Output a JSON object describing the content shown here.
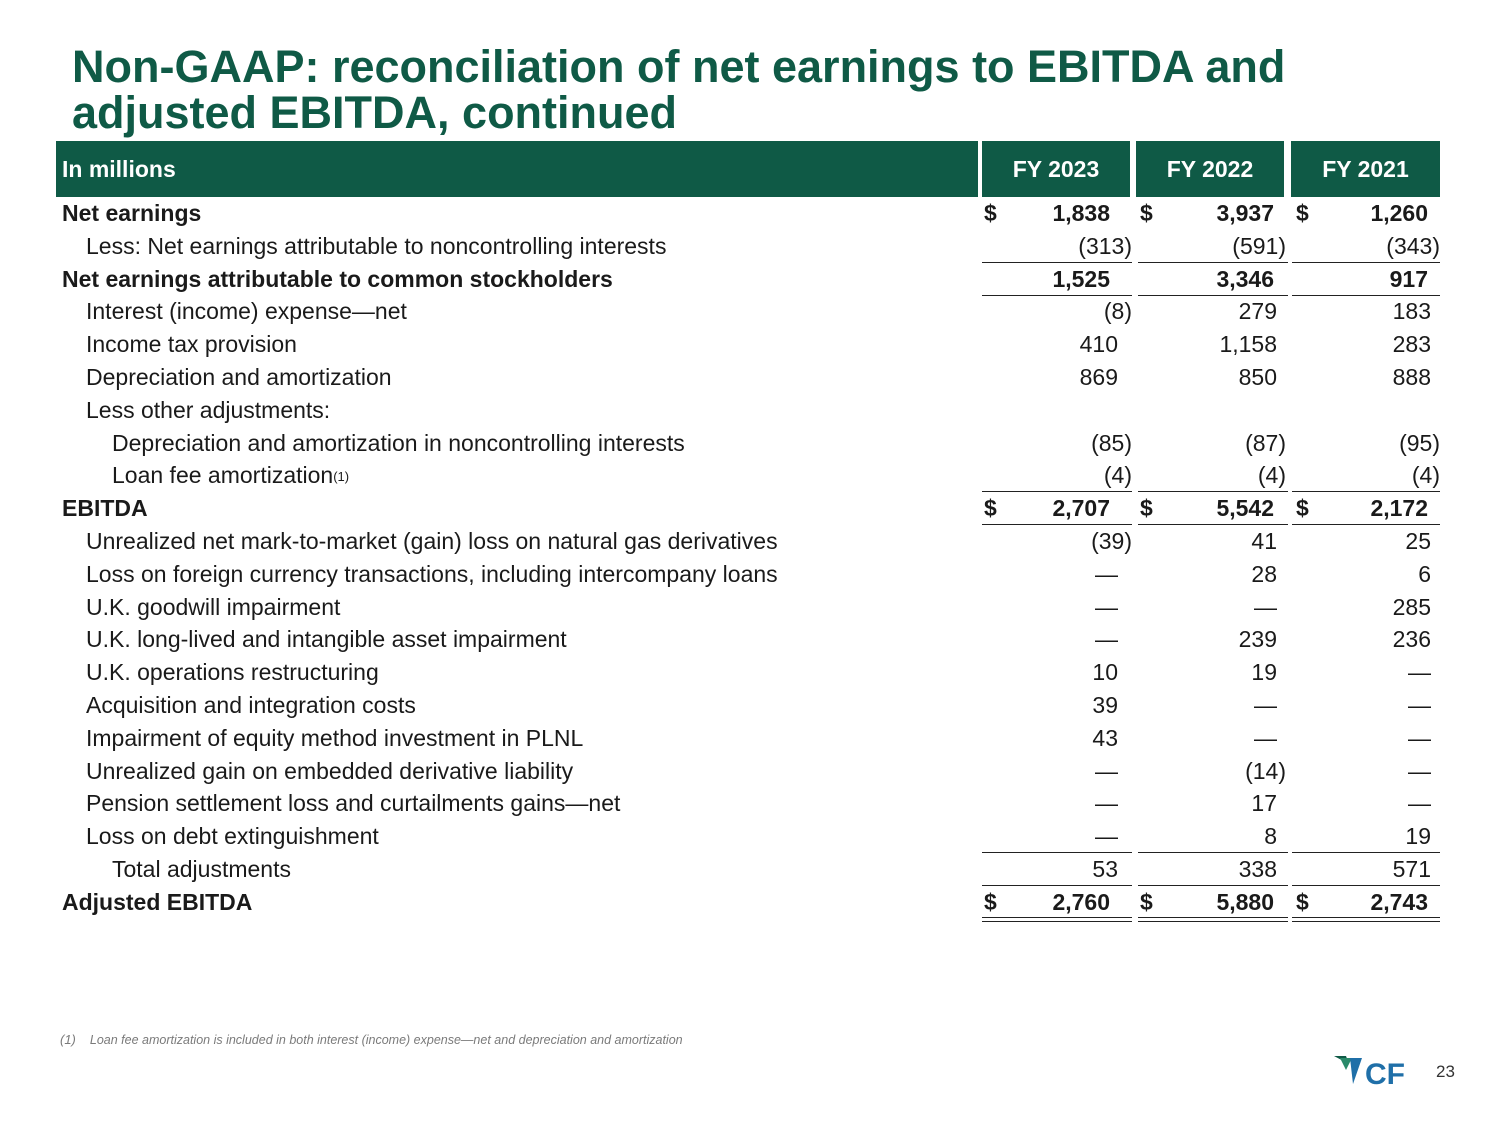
{
  "title": "Non-GAAP: reconciliation of net earnings to EBITDA and adjusted EBITDA, continued",
  "header": {
    "label": "In millions",
    "years": [
      "FY 2023",
      "FY 2022",
      "FY 2021"
    ]
  },
  "rows": [
    {
      "label": "Net earnings",
      "values": [
        "1,838",
        "3,937",
        "1,260"
      ]
    },
    {
      "label": "Less: Net earnings attributable to noncontrolling interests",
      "values": [
        "(313)",
        "(591)",
        "(343)"
      ]
    },
    {
      "label": "Net earnings attributable to common stockholders",
      "values": [
        "1,525",
        "3,346",
        "917"
      ]
    },
    {
      "label": "Interest (income) expense—net",
      "values": [
        "(8)",
        "279",
        "183"
      ]
    },
    {
      "label": "Income tax provision",
      "values": [
        "410",
        "1,158",
        "283"
      ]
    },
    {
      "label": "Depreciation and amortization",
      "values": [
        "869",
        "850",
        "888"
      ]
    },
    {
      "label": "Less other adjustments:",
      "values": [
        "",
        "",
        ""
      ]
    },
    {
      "label": "Depreciation and amortization in noncontrolling interests",
      "values": [
        "(85)",
        "(87)",
        "(95)"
      ]
    },
    {
      "label": "Loan fee amortization",
      "sup": "(1)",
      "values": [
        "(4)",
        "(4)",
        "(4)"
      ]
    },
    {
      "label": "EBITDA",
      "values": [
        "2,707",
        "5,542",
        "2,172"
      ]
    },
    {
      "label": "Unrealized net mark-to-market (gain) loss on natural gas derivatives",
      "values": [
        "(39)",
        "41",
        "25"
      ]
    },
    {
      "label": "Loss on foreign currency transactions, including intercompany loans",
      "values": [
        "—",
        "28",
        "6"
      ]
    },
    {
      "label": "U.K. goodwill impairment",
      "values": [
        "—",
        "—",
        "285"
      ]
    },
    {
      "label": "U.K. long-lived and intangible asset impairment",
      "values": [
        "—",
        "239",
        "236"
      ]
    },
    {
      "label": "U.K. operations restructuring",
      "values": [
        "10",
        "19",
        "—"
      ]
    },
    {
      "label": "Acquisition and integration costs",
      "values": [
        "39",
        "—",
        "—"
      ]
    },
    {
      "label": "Impairment of equity method investment in PLNL",
      "values": [
        "43",
        "—",
        "—"
      ]
    },
    {
      "label": "Unrealized gain on embedded derivative liability",
      "values": [
        "—",
        "(14)",
        "—"
      ]
    },
    {
      "label": "Pension settlement loss and curtailments gains—net",
      "values": [
        "—",
        "17",
        "—"
      ]
    },
    {
      "label": "Loss on debt extinguishment",
      "values": [
        "—",
        "8",
        "19"
      ]
    },
    {
      "label": "Total adjustments",
      "values": [
        "53",
        "338",
        "571"
      ]
    },
    {
      "label": "Adjusted EBITDA",
      "values": [
        "2,760",
        "5,880",
        "2,743"
      ]
    }
  ],
  "currency_symbol": "$",
  "footnote": {
    "mark": "(1)",
    "text": "Loan fee amortization is included in both interest (income) expense—net and depreciation and amortization"
  },
  "logo": {
    "text": "CF",
    "colors": {
      "green": "#0f5a46",
      "blue": "#1f6fa8"
    }
  },
  "page_number": "23",
  "colors": {
    "brand_green": "#0f5a46"
  }
}
